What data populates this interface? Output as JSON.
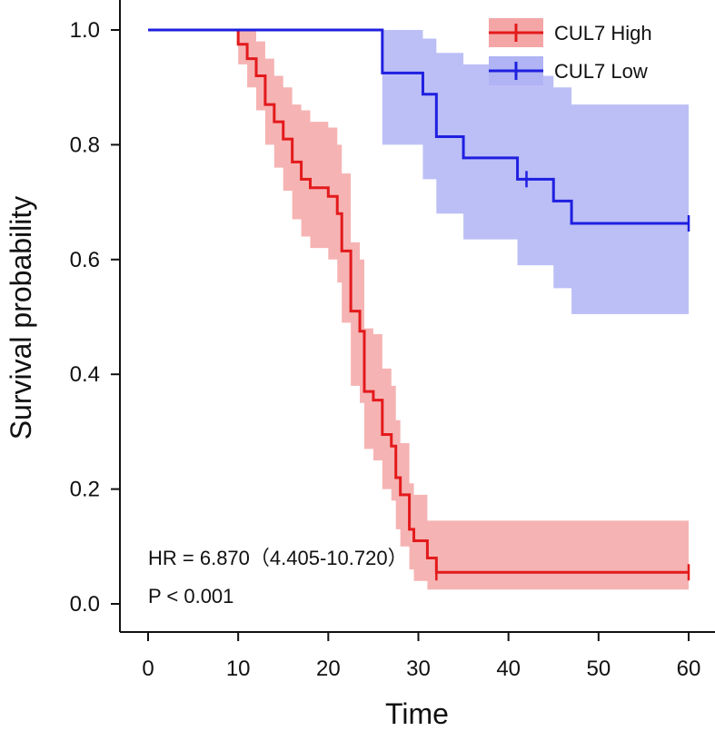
{
  "chart_data": {
    "type": "line",
    "subtype": "kaplan-meier",
    "xlabel": "Time",
    "ylabel": "Survival probability",
    "xlim": [
      0,
      60
    ],
    "ylim": [
      0,
      1
    ],
    "xticks": [
      0,
      10,
      20,
      30,
      40,
      50,
      60
    ],
    "yticks": [
      "0.0",
      "0.2",
      "0.4",
      "0.6",
      "0.8",
      "1.0"
    ],
    "legend_position": "top-right",
    "annotations": {
      "hr": "HR = 6.870（4.405-10.720）",
      "p": "P < 0.001"
    },
    "series": [
      {
        "name": "CUL7 High",
        "color": "#e31a1c",
        "band_color": "#f4a6a6",
        "steps": [
          [
            0,
            1.0
          ],
          [
            10,
            0.975
          ],
          [
            11,
            0.95
          ],
          [
            12,
            0.92
          ],
          [
            13,
            0.87
          ],
          [
            14,
            0.84
          ],
          [
            15,
            0.81
          ],
          [
            16,
            0.77
          ],
          [
            17,
            0.74
          ],
          [
            18,
            0.725
          ],
          [
            20,
            0.71
          ],
          [
            21,
            0.68
          ],
          [
            21.5,
            0.615
          ],
          [
            22.5,
            0.51
          ],
          [
            23.5,
            0.475
          ],
          [
            24,
            0.37
          ],
          [
            25,
            0.355
          ],
          [
            26,
            0.295
          ],
          [
            27,
            0.275
          ],
          [
            27.5,
            0.22
          ],
          [
            28,
            0.19
          ],
          [
            29,
            0.13
          ],
          [
            29.5,
            0.11
          ],
          [
            31,
            0.08
          ],
          [
            32,
            0.055
          ],
          [
            60,
            0.055
          ]
        ],
        "lower": [
          [
            0,
            1.0
          ],
          [
            10,
            0.94
          ],
          [
            11,
            0.9
          ],
          [
            12,
            0.86
          ],
          [
            13,
            0.8
          ],
          [
            14,
            0.76
          ],
          [
            15,
            0.72
          ],
          [
            16,
            0.67
          ],
          [
            17,
            0.64
          ],
          [
            18,
            0.62
          ],
          [
            20,
            0.6
          ],
          [
            21,
            0.56
          ],
          [
            21.5,
            0.49
          ],
          [
            22.5,
            0.38
          ],
          [
            23.5,
            0.35
          ],
          [
            24,
            0.27
          ],
          [
            25,
            0.25
          ],
          [
            26,
            0.2
          ],
          [
            27,
            0.18
          ],
          [
            27.5,
            0.13
          ],
          [
            28,
            0.1
          ],
          [
            29,
            0.06
          ],
          [
            29.5,
            0.04
          ],
          [
            31,
            0.025
          ],
          [
            32,
            0.025
          ],
          [
            60,
            0.025
          ]
        ],
        "upper": [
          [
            0,
            1.0
          ],
          [
            10,
            1.0
          ],
          [
            11,
            1.0
          ],
          [
            12,
            0.98
          ],
          [
            13,
            0.95
          ],
          [
            14,
            0.92
          ],
          [
            15,
            0.9
          ],
          [
            16,
            0.87
          ],
          [
            17,
            0.86
          ],
          [
            18,
            0.84
          ],
          [
            20,
            0.83
          ],
          [
            21,
            0.8
          ],
          [
            21.5,
            0.75
          ],
          [
            22.5,
            0.63
          ],
          [
            23.5,
            0.6
          ],
          [
            24,
            0.48
          ],
          [
            25,
            0.47
          ],
          [
            26,
            0.41
          ],
          [
            27,
            0.38
          ],
          [
            27.5,
            0.32
          ],
          [
            28,
            0.28
          ],
          [
            29,
            0.21
          ],
          [
            29.5,
            0.19
          ],
          [
            31,
            0.145
          ],
          [
            32,
            0.145
          ],
          [
            60,
            0.145
          ]
        ],
        "censor_times": [
          32,
          60
        ]
      },
      {
        "name": "CUL7 Low",
        "color": "#1f1fe0",
        "band_color": "#b0b4f4",
        "steps": [
          [
            0,
            1.0
          ],
          [
            26,
            0.925
          ],
          [
            30.5,
            0.888
          ],
          [
            32,
            0.814
          ],
          [
            35,
            0.777
          ],
          [
            41,
            0.74
          ],
          [
            45,
            0.702
          ],
          [
            47,
            0.663
          ],
          [
            60,
            0.663
          ]
        ],
        "lower": [
          [
            0,
            1.0
          ],
          [
            26,
            0.8
          ],
          [
            30.5,
            0.74
          ],
          [
            32,
            0.68
          ],
          [
            35,
            0.635
          ],
          [
            41,
            0.59
          ],
          [
            45,
            0.55
          ],
          [
            47,
            0.505
          ],
          [
            60,
            0.505
          ]
        ],
        "upper": [
          [
            0,
            1.0
          ],
          [
            26,
            1.0
          ],
          [
            30.5,
            0.985
          ],
          [
            32,
            0.96
          ],
          [
            35,
            0.94
          ],
          [
            41,
            0.92
          ],
          [
            45,
            0.9
          ],
          [
            47,
            0.87
          ],
          [
            60,
            0.87
          ]
        ],
        "censor_times": [
          42,
          60
        ]
      }
    ]
  }
}
